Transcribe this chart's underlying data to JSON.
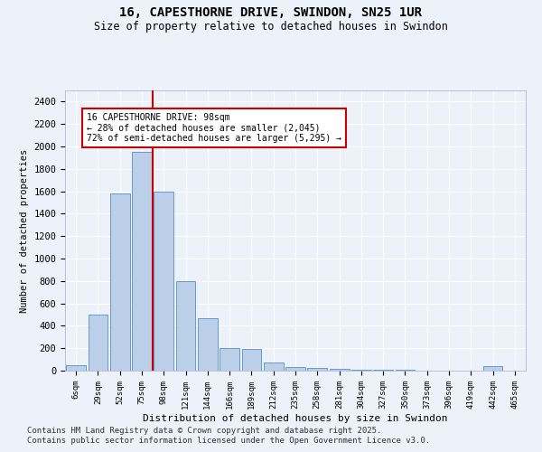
{
  "title": "16, CAPESTHORNE DRIVE, SWINDON, SN25 1UR",
  "subtitle": "Size of property relative to detached houses in Swindon",
  "xlabel": "Distribution of detached houses by size in Swindon",
  "ylabel": "Number of detached properties",
  "bar_categories": [
    "6sqm",
    "29sqm",
    "52sqm",
    "75sqm",
    "98sqm",
    "121sqm",
    "144sqm",
    "166sqm",
    "189sqm",
    "212sqm",
    "235sqm",
    "258sqm",
    "281sqm",
    "304sqm",
    "327sqm",
    "350sqm",
    "373sqm",
    "396sqm",
    "419sqm",
    "442sqm",
    "465sqm"
  ],
  "bar_values": [
    50,
    500,
    1580,
    1950,
    1600,
    800,
    470,
    200,
    190,
    75,
    30,
    25,
    15,
    10,
    10,
    5,
    0,
    0,
    0,
    40,
    0
  ],
  "bar_color": "#BBCFE8",
  "bar_edge_color": "#6699CC",
  "red_line_x": 3.5,
  "annotation_text": "16 CAPESTHORNE DRIVE: 98sqm\n← 28% of detached houses are smaller (2,045)\n72% of semi-detached houses are larger (5,295) →",
  "annotation_box_color": "#ffffff",
  "annotation_box_edge": "#cc0000",
  "ylim": [
    0,
    2500
  ],
  "yticks": [
    0,
    200,
    400,
    600,
    800,
    1000,
    1200,
    1400,
    1600,
    1800,
    2000,
    2200,
    2400
  ],
  "red_line_color": "#cc0000",
  "background_color": "#edf2fa",
  "grid_color": "#ffffff",
  "footer_line1": "Contains HM Land Registry data © Crown copyright and database right 2025.",
  "footer_line2": "Contains public sector information licensed under the Open Government Licence v3.0.",
  "title_fontsize": 10,
  "subtitle_fontsize": 8.5,
  "footer_fontsize": 6.5
}
